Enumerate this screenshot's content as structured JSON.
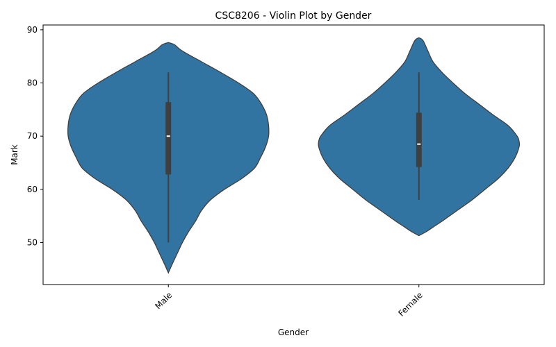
{
  "chart_data": {
    "type": "violin",
    "title": "CSC8206 - Violin Plot by Gender",
    "xlabel": "Gender",
    "ylabel": "Mark",
    "ylim": [
      42.1,
      90.9
    ],
    "yticks": [
      50,
      60,
      70,
      80,
      90
    ],
    "categories": [
      "Male",
      "Female"
    ],
    "grid": false,
    "legend": "none",
    "violin_color": "#3274a1",
    "edge_color": "#3f3f3f",
    "groups": [
      {
        "name": "Male",
        "min": 50,
        "q1": 62.8,
        "median": 70,
        "q3": 76.4,
        "max": 82,
        "density": [
          [
            44.3,
            0.0
          ],
          [
            46,
            0.04
          ],
          [
            48,
            0.09
          ],
          [
            50,
            0.14
          ],
          [
            52,
            0.2
          ],
          [
            54,
            0.27
          ],
          [
            56,
            0.33
          ],
          [
            58,
            0.42
          ],
          [
            60,
            0.56
          ],
          [
            62,
            0.73
          ],
          [
            64,
            0.86
          ],
          [
            66,
            0.92
          ],
          [
            68,
            0.97
          ],
          [
            70,
            1.0
          ],
          [
            72,
            1.0
          ],
          [
            74,
            0.98
          ],
          [
            76,
            0.93
          ],
          [
            78,
            0.85
          ],
          [
            80,
            0.7
          ],
          [
            82,
            0.52
          ],
          [
            84,
            0.33
          ],
          [
            86,
            0.14
          ],
          [
            87.2,
            0.06
          ],
          [
            87.6,
            0.0
          ]
        ]
      },
      {
        "name": "Female",
        "min": 58,
        "q1": 64.2,
        "median": 68.5,
        "q3": 74.4,
        "max": 82,
        "density": [
          [
            51.3,
            0.0
          ],
          [
            52,
            0.07
          ],
          [
            53,
            0.15
          ],
          [
            54,
            0.23
          ],
          [
            56,
            0.38
          ],
          [
            58,
            0.53
          ],
          [
            60,
            0.66
          ],
          [
            62,
            0.79
          ],
          [
            64,
            0.89
          ],
          [
            66,
            0.96
          ],
          [
            68,
            1.0
          ],
          [
            69,
            1.0
          ],
          [
            70,
            0.98
          ],
          [
            72,
            0.89
          ],
          [
            74,
            0.74
          ],
          [
            76,
            0.6
          ],
          [
            78,
            0.46
          ],
          [
            80,
            0.34
          ],
          [
            82,
            0.23
          ],
          [
            84,
            0.14
          ],
          [
            86,
            0.09
          ],
          [
            88,
            0.04
          ],
          [
            88.5,
            0.0
          ]
        ]
      }
    ]
  }
}
